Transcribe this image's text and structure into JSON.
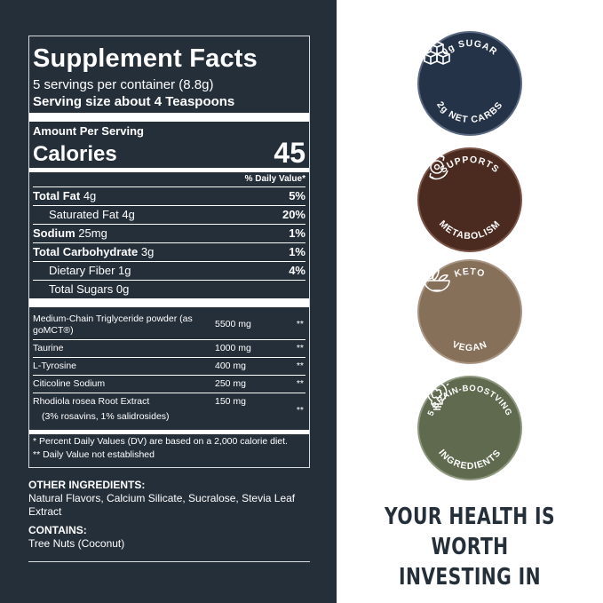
{
  "facts": {
    "title": "Supplement Facts",
    "servings": "5 servings per container (8.8g)",
    "serving_size": "Serving size about 4 Teaspoons",
    "amount_per_serving": "Amount Per Serving",
    "calories_label": "Calories",
    "calories_value": "45",
    "dv_header": "% Daily Value*",
    "nutrients": [
      {
        "name": "Total Fat",
        "amount": "4g",
        "dv": "5%"
      },
      {
        "name": "Saturated Fat",
        "amount": "4g",
        "dv": "20%"
      },
      {
        "name": "Sodium",
        "amount": "25mg",
        "dv": "1%"
      },
      {
        "name": "Total Carbohydrate",
        "amount": "3g",
        "dv": "1%"
      },
      {
        "name": "Dietary Fiber",
        "amount": "1g",
        "dv": "4%"
      },
      {
        "name": "Total Sugars",
        "amount": "0g",
        "dv": ""
      }
    ],
    "ingredients": [
      {
        "name": "Medium-Chain Triglyceride powder (as goMCT®)",
        "amount": "5500 mg",
        "dv": "**"
      },
      {
        "name": "Taurine",
        "amount": "1000 mg",
        "dv": "**"
      },
      {
        "name": "L-Tyrosine",
        "amount": "400 mg",
        "dv": "**"
      },
      {
        "name": "Citicoline Sodium",
        "amount": "250 mg",
        "dv": "**"
      },
      {
        "name": "Rhodiola rosea Root Extract",
        "sub": "(3% rosavins, 1% salidrosides)",
        "amount": "150 mg",
        "dv": "**"
      }
    ],
    "footnote_1": "* Percent Daily Values (DV) are based on a 2,000 calorie diet.",
    "footnote_2": "** Daily Value not established"
  },
  "other": {
    "heading": "OTHER INGREDIENTS:",
    "text": "Natural Flavors, Calcium Silicate, Sucralose, Stevia Leaf Extract",
    "contains_heading": "CONTAINS:",
    "contains_text": "Tree Nuts (Coconut)"
  },
  "badges": [
    {
      "top": "0g SUGAR",
      "bottom": "2g NET CARBS",
      "icon": "sugar-cubes-icon",
      "color": "#253349"
    },
    {
      "top": "SUPPORTS",
      "bottom": "METABOLISM",
      "icon": "metabolism-icon",
      "color": "#4b2b20"
    },
    {
      "top": "KETO",
      "bottom": "VEGAN",
      "icon": "salad-bowl-icon",
      "color": "#86705a"
    },
    {
      "top": "5 BRAIN-BOOSTVING",
      "bottom": "INGREDIENTS",
      "icon": "brain-bulb-icon",
      "color": "#5f6a4e"
    }
  ],
  "tagline": {
    "line1": "YOUR HEALTH IS",
    "line2": "WORTH INVESTING IN"
  }
}
